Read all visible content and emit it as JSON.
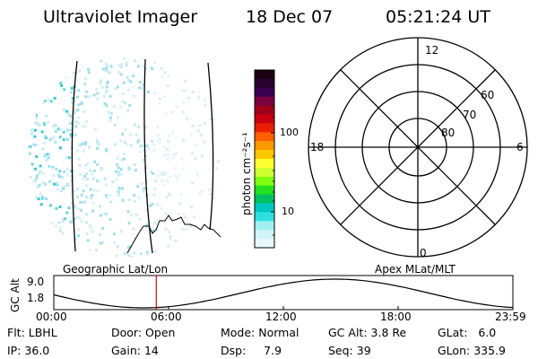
{
  "header": {
    "instrument": "Ultraviolet Imager",
    "date": "18 Dec 07",
    "time": "05:21:24 UT"
  },
  "colorbar": {
    "unit_label": "photon cm⁻²s⁻¹",
    "ticks": [
      "100",
      "10"
    ],
    "colors": [
      "#1a0010",
      "#2a0030",
      "#3a0050",
      "#7a0040",
      "#a00018",
      "#c80010",
      "#e82000",
      "#ff6000",
      "#ff9800",
      "#ffc800",
      "#ffff30",
      "#d0ff30",
      "#80ff10",
      "#20e020",
      "#00c060",
      "#00c8c0",
      "#30e0e0",
      "#a0f0f0",
      "#d0f4f8",
      "#e8f8fc"
    ]
  },
  "polar": {
    "mlt_labels": {
      "top": "12",
      "left": "18",
      "right": "6",
      "bottom": "0"
    },
    "lat_labels": [
      "60",
      "70",
      "80"
    ]
  },
  "altitude_plot": {
    "left_title": "Geographic Lat/Lon",
    "right_title": "Apex MLat/MLT",
    "y_axis_label": "GC Alt",
    "y_ticks": [
      "9.0",
      "1.8"
    ],
    "x_ticks": [
      "00:00",
      "06:00",
      "12:00",
      "18:00",
      "23:59"
    ],
    "current_time_marker_hour": 5.36,
    "marker_color": "#e00000"
  },
  "info": {
    "row1": [
      {
        "label": "Flt:",
        "value": "LBHL"
      },
      {
        "label": "Door:",
        "value": "Open"
      },
      {
        "label": "Mode:",
        "value": "Normal"
      },
      {
        "label": "GC Alt:",
        "value": "3.8 Re"
      },
      {
        "label": "GLat:",
        "value": "6.0"
      }
    ],
    "row2": [
      {
        "label": "IP:",
        "value": "36.0"
      },
      {
        "label": "Gain:",
        "value": "14"
      },
      {
        "label": "Dsp:",
        "value": "7.9"
      },
      {
        "label": "Seq:",
        "value": "39"
      },
      {
        "label": "GLon:",
        "value": "335.9"
      }
    ]
  }
}
